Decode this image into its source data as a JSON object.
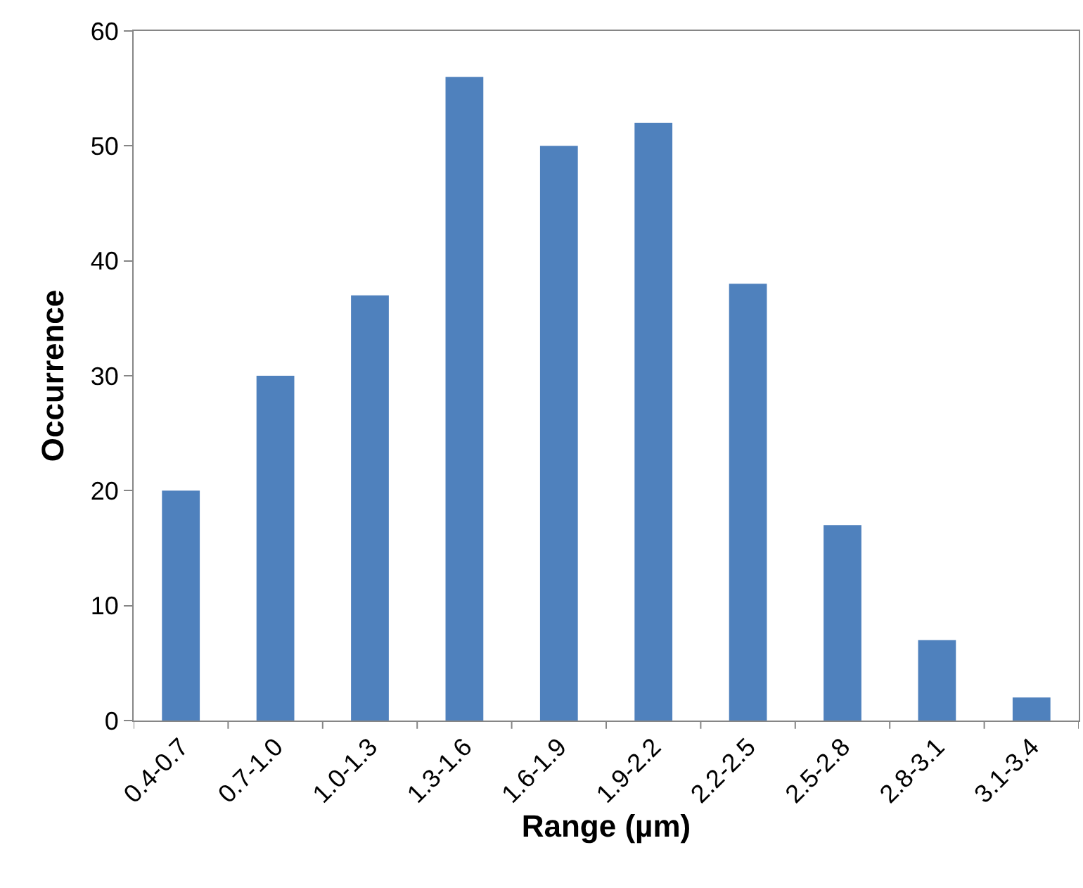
{
  "chart_data": {
    "type": "bar",
    "xlabel": "Range (µm)",
    "ylabel": "Occurrence",
    "categories": [
      "0.4-0.7",
      "0.7-1.0",
      "1.0-1.3",
      "1.3-1.6",
      "1.6-1.9",
      "1.9-2.2",
      "2.2-2.5",
      "2.5-2.8",
      "2.8-3.1",
      "3.1-3.4"
    ],
    "values": [
      20,
      30,
      37,
      56,
      50,
      52,
      38,
      17,
      7,
      2
    ],
    "color": "#4f81bd",
    "ylim": [
      0,
      60
    ],
    "yticks": [
      0,
      10,
      20,
      30,
      40,
      50,
      60
    ],
    "grid": false,
    "legend": false
  }
}
